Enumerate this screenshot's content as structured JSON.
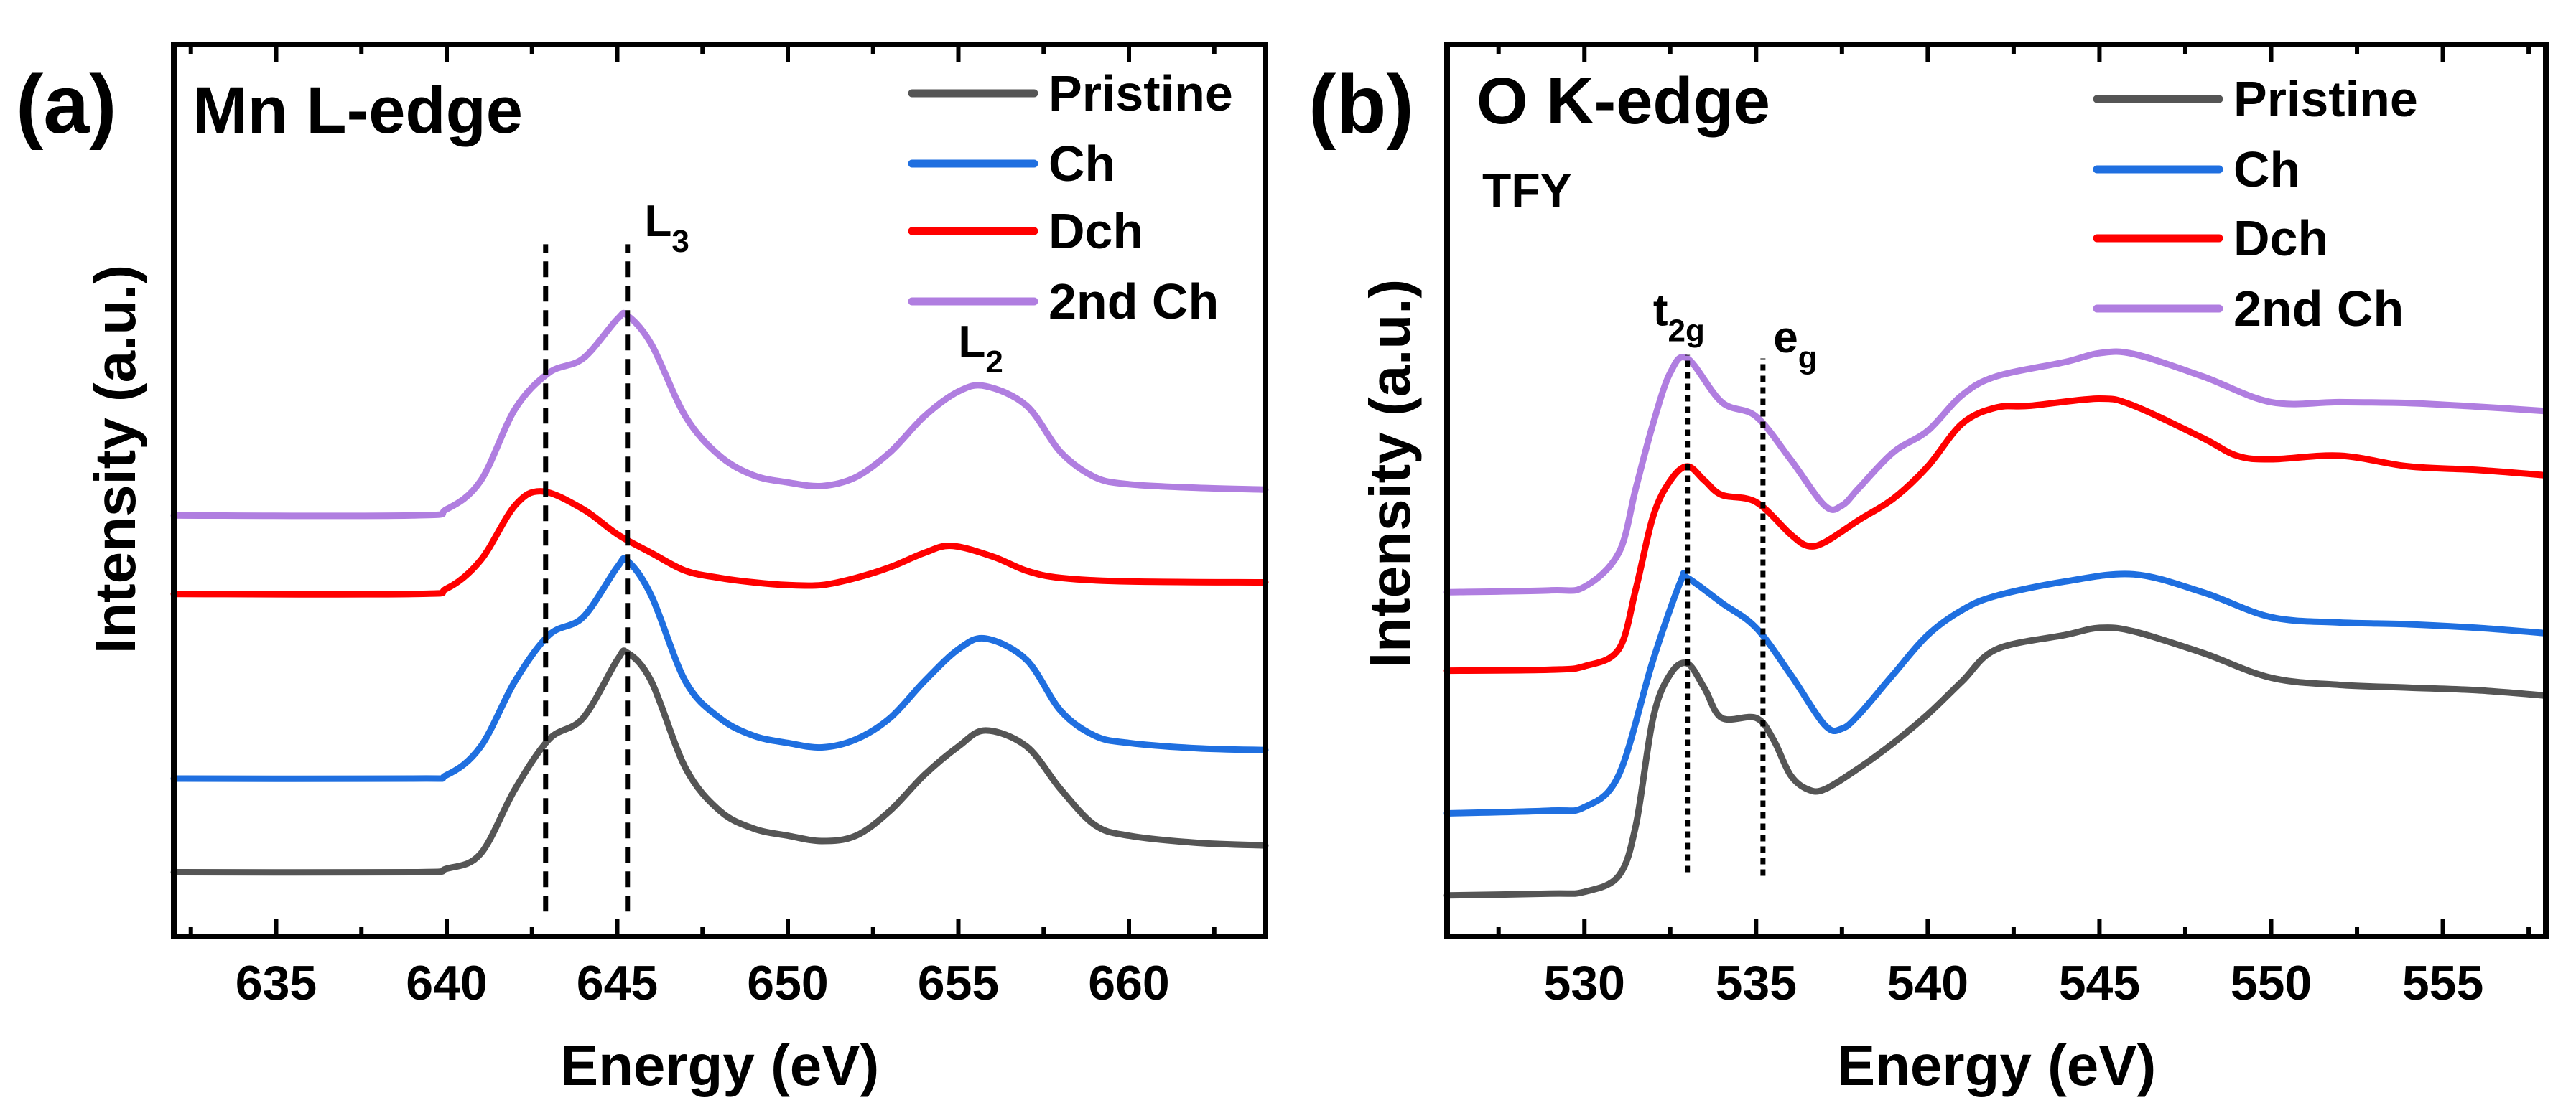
{
  "chart_data": [
    {
      "type": "line",
      "panel_label": "(a)",
      "title": "Mn L-edge",
      "subtitle": "",
      "xlabel": "Energy (eV)",
      "ylabel": "Intensity (a.u.)",
      "xlim": [
        632,
        664
      ],
      "ylim": [
        0,
        100
      ],
      "xticks": [
        635,
        640,
        645,
        650,
        655,
        660
      ],
      "grid": false,
      "legend_position": "top-right",
      "series": [
        {
          "name": "Pristine",
          "color": "#555555",
          "x": [
            632,
            639,
            640,
            641,
            642,
            643,
            644,
            645,
            645.3,
            646,
            647,
            648,
            649,
            650,
            651,
            652,
            653,
            654,
            655,
            655.8,
            657,
            658,
            659,
            660,
            662,
            664
          ],
          "y": [
            7.2,
            7.2,
            7.6,
            9.3,
            16.5,
            22.1,
            24.5,
            31.0,
            31.8,
            28.6,
            18.9,
            14.1,
            12.1,
            11.3,
            10.7,
            11.3,
            14.1,
            18.1,
            21.3,
            23.1,
            21.3,
            16.5,
            12.5,
            11.3,
            10.5,
            10.2
          ]
        },
        {
          "name": "Ch",
          "color": "#1f6fe0",
          "x": [
            632,
            639,
            640,
            641,
            642,
            643,
            644,
            645,
            645.3,
            646,
            647,
            648,
            649,
            650,
            651,
            652,
            653,
            654,
            655,
            655.8,
            657,
            658,
            659,
            660,
            662,
            664
          ],
          "y": [
            17.7,
            17.7,
            18.1,
            21.3,
            28.6,
            33.8,
            35.8,
            41.4,
            42.1,
            38.2,
            28.6,
            24.5,
            22.5,
            21.7,
            21.2,
            22.1,
            24.5,
            28.6,
            32.2,
            33.4,
            31.0,
            25.3,
            22.5,
            21.7,
            21.1,
            20.9
          ]
        },
        {
          "name": "Dch",
          "color": "#ff0000",
          "x": [
            632,
            639,
            640,
            641,
            642,
            642.8,
            644,
            645,
            646,
            647,
            648,
            649,
            650,
            651,
            652,
            653,
            654,
            654.8,
            656,
            657,
            658,
            660,
            664
          ],
          "y": [
            38.4,
            38.4,
            39.0,
            42.2,
            48.3,
            49.9,
            47.9,
            45.1,
            43.0,
            41.0,
            40.2,
            39.7,
            39.4,
            39.4,
            40.2,
            41.4,
            43.0,
            43.8,
            42.6,
            41.0,
            40.2,
            39.8,
            39.7
          ]
        },
        {
          "name": "2nd Ch",
          "color": "#b07ee0",
          "x": [
            632,
            639,
            640,
            641,
            642,
            643,
            644,
            645,
            645.3,
            646,
            647,
            648,
            649,
            650,
            651,
            652,
            653,
            654,
            655,
            655.8,
            657,
            658,
            659,
            660,
            662,
            664
          ],
          "y": [
            47.2,
            47.2,
            47.9,
            51.1,
            59.1,
            63.2,
            64.8,
            69.2,
            69.6,
            66.4,
            58.3,
            53.9,
            51.7,
            50.9,
            50.5,
            51.5,
            54.3,
            58.3,
            61.1,
            61.7,
            59.5,
            54.3,
            51.5,
            50.7,
            50.3,
            50.1
          ]
        }
      ],
      "reference_lines": [
        {
          "x": 642.9,
          "y_range": [
            2.8,
            77.6
          ],
          "style": "dashed"
        },
        {
          "x": 645.3,
          "y_range": [
            2.8,
            77.6
          ],
          "style": "dashed"
        }
      ],
      "annotations": [
        {
          "main": "L",
          "sub": "3",
          "x": 645.8,
          "y": 78.5
        },
        {
          "main": "L",
          "sub": "2",
          "x": 655.0,
          "y": 65.0
        }
      ]
    },
    {
      "type": "line",
      "panel_label": "(b)",
      "title": "O K-edge",
      "subtitle": "TFY",
      "xlabel": "Energy (eV)",
      "ylabel": "Intensity (a.u.)",
      "xlim": [
        526,
        558
      ],
      "ylim": [
        0,
        100
      ],
      "xticks": [
        530,
        535,
        540,
        545,
        550,
        555
      ],
      "grid": false,
      "legend_position": "top-right",
      "series": [
        {
          "name": "Pristine",
          "color": "#555555",
          "x": [
            526,
            529,
            530,
            531,
            531.5,
            532,
            532.5,
            533,
            533.5,
            534,
            535,
            535.5,
            536,
            536.5,
            537,
            538,
            539,
            540,
            541,
            542,
            544,
            545,
            546,
            548,
            550,
            552,
            554,
            556,
            558
          ],
          "y": [
            4.6,
            4.8,
            5.0,
            6.8,
            12.5,
            24.5,
            29.4,
            30.6,
            27.8,
            24.5,
            24.5,
            22.1,
            18.1,
            16.5,
            16.5,
            18.9,
            21.7,
            24.9,
            28.6,
            32.2,
            33.8,
            34.6,
            34.2,
            31.8,
            29.0,
            28.2,
            27.9,
            27.6,
            27.0
          ]
        },
        {
          "name": "Ch",
          "color": "#1f6fe0",
          "x": [
            526,
            529,
            530,
            531,
            532,
            532.8,
            533,
            534,
            535,
            536,
            537,
            537.5,
            538,
            539,
            540,
            541,
            542,
            544,
            546,
            548,
            550,
            552,
            554,
            556,
            558
          ],
          "y": [
            13.8,
            14.1,
            14.5,
            18.1,
            31.0,
            39.8,
            40.2,
            37.4,
            34.6,
            29.4,
            23.7,
            23.3,
            24.9,
            29.4,
            33.8,
            36.6,
            38.2,
            39.8,
            40.6,
            38.6,
            35.8,
            35.2,
            35.0,
            34.6,
            34.0
          ]
        },
        {
          "name": "Dch",
          "color": "#ff0000",
          "x": [
            526,
            529,
            530,
            531,
            531.5,
            532,
            532.5,
            533,
            533.5,
            534,
            535,
            536,
            536.5,
            537,
            538,
            539,
            540,
            541,
            542,
            543,
            545,
            546,
            548,
            549,
            550,
            552,
            554,
            556,
            558
          ],
          "y": [
            29.8,
            29.9,
            30.3,
            32.2,
            39.0,
            47.1,
            51.1,
            52.7,
            51.1,
            49.5,
            48.7,
            45.1,
            43.8,
            44.2,
            46.7,
            49.1,
            52.7,
            57.5,
            59.3,
            59.5,
            60.3,
            59.5,
            55.9,
            53.9,
            53.5,
            53.9,
            52.7,
            52.3,
            51.7
          ]
        },
        {
          "name": "2nd Ch",
          "color": "#b07ee0",
          "x": [
            526,
            529,
            530,
            531,
            531.5,
            532,
            532.5,
            533,
            534,
            535,
            536,
            537,
            537.5,
            538,
            539,
            540,
            541,
            542,
            544,
            545,
            546,
            548,
            550,
            552,
            554,
            556,
            558
          ],
          "y": [
            38.6,
            38.8,
            39.2,
            43.0,
            50.3,
            57.5,
            63.2,
            64.8,
            59.9,
            58.3,
            53.5,
            48.3,
            48.3,
            50.3,
            54.3,
            56.7,
            60.7,
            62.8,
            64.4,
            65.4,
            65.3,
            62.8,
            59.9,
            59.9,
            59.8,
            59.4,
            58.9
          ]
        }
      ],
      "reference_lines": [
        {
          "x": 533.0,
          "y_range": [
            7.2,
            65.2
          ],
          "style": "dotted"
        },
        {
          "x": 535.2,
          "y_range": [
            6.8,
            64.8
          ],
          "style": "dotted"
        }
      ],
      "annotations": [
        {
          "main": "t",
          "sub": "2g",
          "x": 532.0,
          "y": 68.5
        },
        {
          "main": "e",
          "sub": "g",
          "x": 535.5,
          "y": 65.5
        }
      ]
    }
  ]
}
